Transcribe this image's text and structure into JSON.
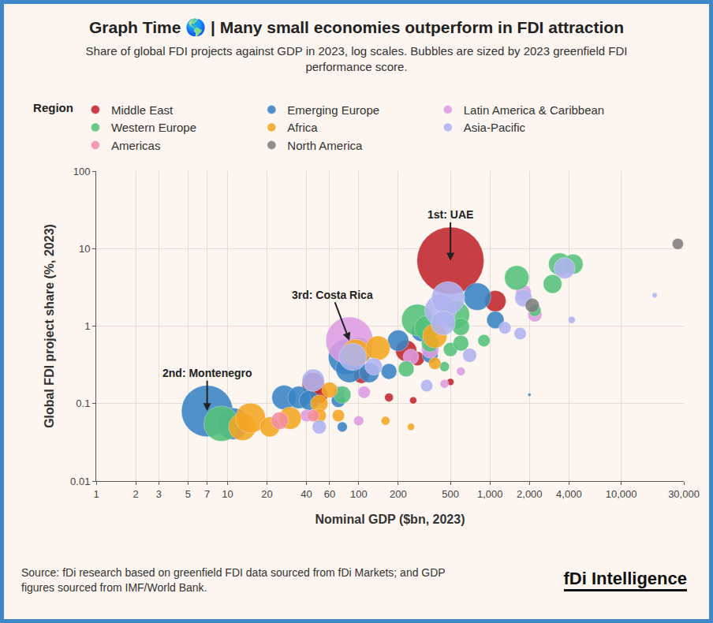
{
  "chart_data": {
    "type": "scatter",
    "title": "Graph Time 🌎 | Many small economies outperform in FDI attraction",
    "subtitle": "Share of global FDI projects against GDP in 2023, log scales. Bubbles are sized by 2023 greenfield FDI performance score.",
    "x_label": "Nominal GDP ($bn, 2023)",
    "y_label": "Global FDI project share (%, 2023)",
    "legend_title": "Region",
    "legend": "top",
    "log": true,
    "grid": true,
    "xlim": [
      1,
      30000
    ],
    "ylim": [
      0.01,
      100
    ],
    "xticks": [
      1,
      2,
      3,
      5,
      7,
      10,
      20,
      40,
      60,
      100,
      200,
      500,
      {
        "value": 1000,
        "label": "1,000"
      },
      {
        "value": 2000,
        "label": "2,000"
      },
      {
        "value": 4000,
        "label": "4,000"
      },
      {
        "value": 10000,
        "label": "10,000"
      },
      {
        "value": 30000,
        "label": "30,000"
      }
    ],
    "yticks": [
      0.01,
      0.1,
      1,
      10,
      100
    ],
    "series": [
      {
        "name": "Middle East",
        "color": "#c0262d",
        "x": [
          500,
          1100,
          230,
          45,
          50,
          105,
          170,
          260,
          500,
          280
        ],
        "y": [
          7,
          2.1,
          0.48,
          0.18,
          0.13,
          0.23,
          0.12,
          0.11,
          0.19,
          0.38
        ],
        "size": [
          9,
          0.9,
          0.9,
          1.0,
          0.6,
          0.5,
          0.15,
          0.1,
          0.1,
          0.4
        ]
      },
      {
        "name": "Emerging Europe",
        "color": "#3a84c5",
        "x": [
          7,
          11,
          27,
          35,
          42,
          80,
          85,
          100,
          120,
          170,
          200,
          800,
          1100,
          350,
          75,
          70,
          300,
          2000
        ],
        "y": [
          0.08,
          0.055,
          0.12,
          0.12,
          0.11,
          0.4,
          0.28,
          0.48,
          0.25,
          0.26,
          0.65,
          2.4,
          1.2,
          0.42,
          0.05,
          0.11,
          0.85,
          0.13
        ],
        "size": [
          5.3,
          2.0,
          1.2,
          1.0,
          0.8,
          2.5,
          1.5,
          1.4,
          0.8,
          0.5,
          0.9,
          1.5,
          0.6,
          0.5,
          0.2,
          0.4,
          0.8,
          0.02
        ]
      },
      {
        "name": "Latin America & Caribbean",
        "color": "#dd9de3",
        "x": [
          85,
          40,
          70,
          110,
          100,
          250,
          350,
          600,
          1800,
          2200,
          450
        ],
        "y": [
          0.65,
          0.07,
          0.14,
          0.14,
          0.06,
          0.4,
          0.5,
          0.26,
          2.7,
          1.4,
          0.18
        ],
        "size": [
          4.5,
          0.3,
          0.3,
          0.3,
          0.2,
          0.5,
          0.6,
          0.15,
          0.5,
          0.4,
          0.15
        ]
      },
      {
        "name": "Western Europe",
        "color": "#55c27a",
        "x": [
          9,
          75,
          280,
          330,
          550,
          600,
          500,
          600,
          900,
          450,
          1600,
          2200,
          3000,
          3400,
          4300,
          350,
          230
        ],
        "y": [
          0.055,
          0.13,
          1.2,
          0.95,
          1.4,
          0.98,
          0.5,
          0.6,
          0.65,
          0.3,
          4.2,
          1.6,
          3.5,
          6.3,
          6.3,
          0.6,
          0.28
        ],
        "size": [
          2.5,
          0.6,
          2.0,
          1.2,
          1.5,
          0.6,
          0.4,
          0.5,
          0.3,
          0.2,
          1.2,
          0.3,
          0.7,
          1.0,
          0.8,
          0.6,
          0.5
        ]
      },
      {
        "name": "Africa",
        "color": "#f5a623",
        "x": [
          13,
          15,
          21,
          30,
          50,
          50,
          60,
          95,
          140,
          380,
          70,
          160,
          250,
          380
        ],
        "y": [
          0.05,
          0.065,
          0.05,
          0.065,
          0.1,
          0.07,
          0.15,
          0.45,
          0.52,
          0.75,
          0.07,
          0.06,
          0.05,
          0.33
        ],
        "size": [
          1.5,
          1.8,
          0.8,
          1.0,
          0.6,
          0.4,
          0.5,
          1.5,
          1.2,
          1.2,
          0.3,
          0.15,
          0.1,
          0.3
        ]
      },
      {
        "name": "Asia-Pacific",
        "color": "#b0b4f0",
        "x": [
          45,
          90,
          420,
          480,
          440,
          700,
          1300,
          1700,
          1800,
          3700,
          4200,
          18000,
          330,
          50,
          130
        ],
        "y": [
          0.2,
          0.4,
          1.6,
          2.3,
          1.1,
          0.42,
          0.95,
          0.8,
          2.3,
          5.6,
          1.2,
          2.5,
          0.17,
          0.05,
          0.3
        ],
        "size": [
          1.0,
          1.5,
          2.0,
          2.2,
          1.2,
          0.4,
          0.3,
          0.3,
          0.6,
          0.9,
          0.1,
          0.05,
          0.3,
          0.4,
          0.6
        ]
      },
      {
        "name": "Americas",
        "color": "#f28fa0",
        "x": [
          25,
          45
        ],
        "y": [
          0.06,
          0.07
        ],
        "size": [
          0.6,
          0.3
        ]
      },
      {
        "name": "North America",
        "color": "#7f7f7f",
        "x": [
          27000,
          2100
        ],
        "y": [
          11.5,
          1.85
        ],
        "size": [
          0.25,
          0.4
        ]
      }
    ],
    "annotations": [
      {
        "text": "1st: UAE",
        "x": 500,
        "y": 7
      },
      {
        "text": "2nd: Montenegro",
        "x": 7,
        "y": 0.08
      },
      {
        "text": "3rd: Costa Rica",
        "x": 85,
        "y": 0.65
      }
    ],
    "source": "Source: fDi research based on greenfield FDI data sourced from fDi Markets; and GDP figures sourced from IMF/World Bank.",
    "brand": "fDi Intelligence"
  }
}
